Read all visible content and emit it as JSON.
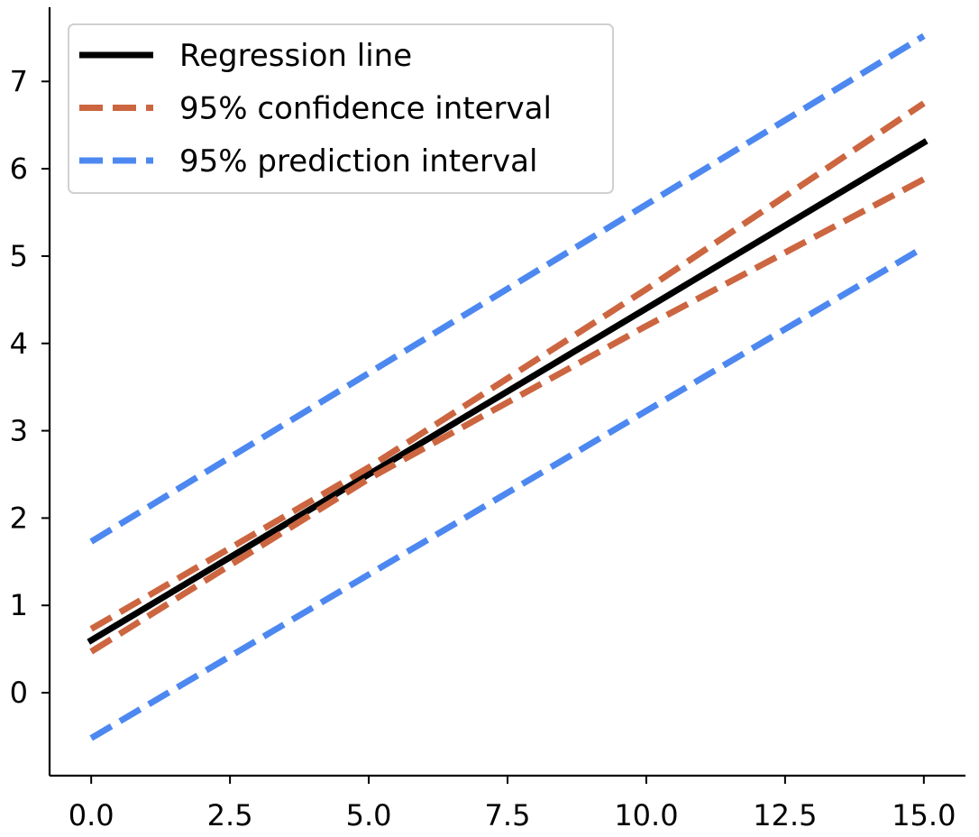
{
  "chart_data": {
    "type": "line",
    "title": "",
    "xlabel": "",
    "ylabel": "",
    "xlim": [
      -0.75,
      15.75
    ],
    "ylim": [
      -0.95,
      7.85
    ],
    "x_ticks": [
      0,
      2.5,
      5,
      7.5,
      10,
      12.5,
      15
    ],
    "x_tick_labels": [
      "0.0",
      "2.5",
      "5.0",
      "7.5",
      "10.0",
      "12.5",
      "15.0"
    ],
    "y_ticks": [
      0,
      1,
      2,
      3,
      4,
      5,
      6,
      7
    ],
    "y_tick_labels": [
      "0",
      "1",
      "2",
      "3",
      "4",
      "5",
      "6",
      "7"
    ],
    "grid": false,
    "legend_position": "top-left",
    "series": [
      {
        "key": "regression",
        "name": "Regression line",
        "color": "#000000",
        "style": "solid",
        "x": [
          0,
          15
        ],
        "y": [
          0.6,
          6.3
        ]
      },
      {
        "key": "ci_upper",
        "name": "95% confidence interval",
        "color": "#cc6640",
        "style": "dashed",
        "x": [
          0,
          5,
          10,
          15
        ],
        "y": [
          0.73,
          2.58,
          4.62,
          6.75
        ]
      },
      {
        "key": "ci_lower",
        "name": "95% confidence interval",
        "color": "#cc6640",
        "style": "dashed",
        "x": [
          0,
          5,
          10,
          15
        ],
        "y": [
          0.47,
          2.45,
          4.2,
          5.88
        ]
      },
      {
        "key": "pi_upper",
        "name": "95% prediction interval",
        "color": "#4d88f0",
        "style": "dashed",
        "x": [
          0,
          15
        ],
        "y": [
          1.73,
          7.52
        ]
      },
      {
        "key": "pi_lower",
        "name": "95% prediction interval",
        "color": "#4d88f0",
        "style": "dashed",
        "x": [
          0,
          15
        ],
        "y": [
          -0.52,
          5.1
        ]
      }
    ],
    "legend": [
      {
        "label": "Regression line",
        "color": "#000000",
        "style": "solid"
      },
      {
        "label": "95% confidence interval",
        "color": "#cc6640",
        "style": "dashed"
      },
      {
        "label": "95% prediction interval",
        "color": "#4d88f0",
        "style": "dashed"
      }
    ]
  }
}
